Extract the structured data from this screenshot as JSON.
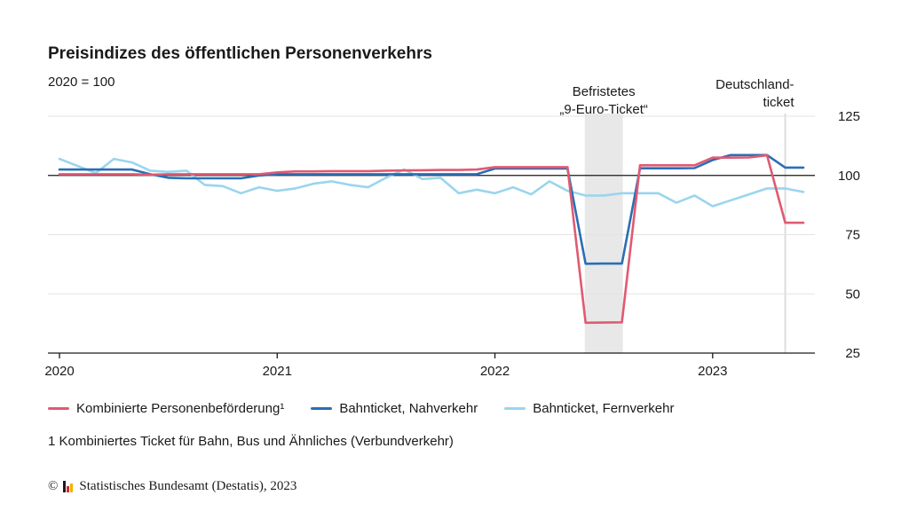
{
  "chart_data": {
    "type": "line",
    "title": "Preisindizes des öffentlichen Personenverkehrs",
    "subtitle": "2020 = 100",
    "ylim": [
      25,
      125
    ],
    "y_ticks": [
      25,
      50,
      75,
      100,
      125
    ],
    "reference_line": 100,
    "x_range": [
      "2020-01",
      "2023-06"
    ],
    "x_ticks": [
      "2020",
      "2021",
      "2022",
      "2023"
    ],
    "grid": true,
    "legend_position": "bottom",
    "annotations": [
      {
        "id": "nine-euro",
        "lines": [
          "Befristetes",
          "„9-Euro-Ticket“"
        ],
        "shaded_period": [
          "2022-06",
          "2022-08"
        ]
      },
      {
        "id": "deutschlandticket",
        "lines": [
          "Deutschland-",
          "ticket"
        ],
        "marker_period": [
          "2023-05",
          "2023-05"
        ]
      }
    ],
    "x": [
      "2020-01",
      "2020-02",
      "2020-03",
      "2020-04",
      "2020-05",
      "2020-06",
      "2020-07",
      "2020-08",
      "2020-09",
      "2020-10",
      "2020-11",
      "2020-12",
      "2021-01",
      "2021-02",
      "2021-03",
      "2021-04",
      "2021-05",
      "2021-06",
      "2021-07",
      "2021-08",
      "2021-09",
      "2021-10",
      "2021-11",
      "2021-12",
      "2022-01",
      "2022-02",
      "2022-03",
      "2022-04",
      "2022-05",
      "2022-06",
      "2022-07",
      "2022-08",
      "2022-09",
      "2022-10",
      "2022-11",
      "2022-12",
      "2023-01",
      "2023-02",
      "2023-03",
      "2023-04",
      "2023-05",
      "2023-06"
    ],
    "series": [
      {
        "name": "Kombinierte Personenbeförderung¹",
        "color": "#e05a72",
        "values": [
          100.5,
          100.5,
          100.5,
          100.5,
          100.5,
          100.3,
          100.5,
          100.5,
          100.5,
          100.5,
          100.5,
          100.5,
          101.3,
          101.7,
          101.7,
          101.8,
          101.8,
          101.8,
          102.0,
          102.1,
          102.2,
          102.3,
          102.3,
          102.5,
          103.5,
          103.5,
          103.5,
          103.5,
          103.5,
          37.8,
          37.9,
          38.0,
          104.3,
          104.3,
          104.3,
          104.3,
          107.5,
          107.5,
          107.6,
          108.5,
          80.0,
          80.0
        ]
      },
      {
        "name": "Bahnticket, Nahverkehr",
        "color": "#2a6eb5",
        "values": [
          102.5,
          102.5,
          102.5,
          102.5,
          102.5,
          100.5,
          99.0,
          98.8,
          98.8,
          98.8,
          98.8,
          100.0,
          100.5,
          100.5,
          100.5,
          100.5,
          100.5,
          100.5,
          100.5,
          100.5,
          100.5,
          100.5,
          100.5,
          100.5,
          102.9,
          102.9,
          102.9,
          102.9,
          102.9,
          62.7,
          62.8,
          62.8,
          103.0,
          103.0,
          103.0,
          103.1,
          106.5,
          108.6,
          108.6,
          108.6,
          103.3,
          103.3
        ]
      },
      {
        "name": "Bahnticket, Fernverkehr",
        "color": "#9ad5ee",
        "values": [
          107.0,
          104.0,
          101.0,
          107.0,
          105.5,
          102.0,
          101.5,
          102.0,
          96.0,
          95.5,
          92.5,
          95.0,
          93.5,
          94.5,
          96.5,
          97.5,
          96.0,
          95.0,
          99.0,
          102.5,
          98.5,
          99.0,
          92.5,
          94.0,
          92.5,
          95.0,
          92.0,
          97.5,
          93.5,
          91.5,
          91.5,
          92.5,
          92.5,
          92.5,
          88.5,
          91.5,
          87.0,
          89.5,
          92.0,
          94.5,
          94.5,
          93.0
        ]
      }
    ]
  },
  "footnote": "1 Kombiniertes Ticket für Bahn, Bus und Ähnliches (Verbundverkehr)",
  "source": {
    "copyright": "©",
    "text": "Statistisches Bundesamt (Destatis), 2023",
    "logo_colors": [
      "#1a1a1a",
      "#d9282f",
      "#f0b400"
    ]
  }
}
